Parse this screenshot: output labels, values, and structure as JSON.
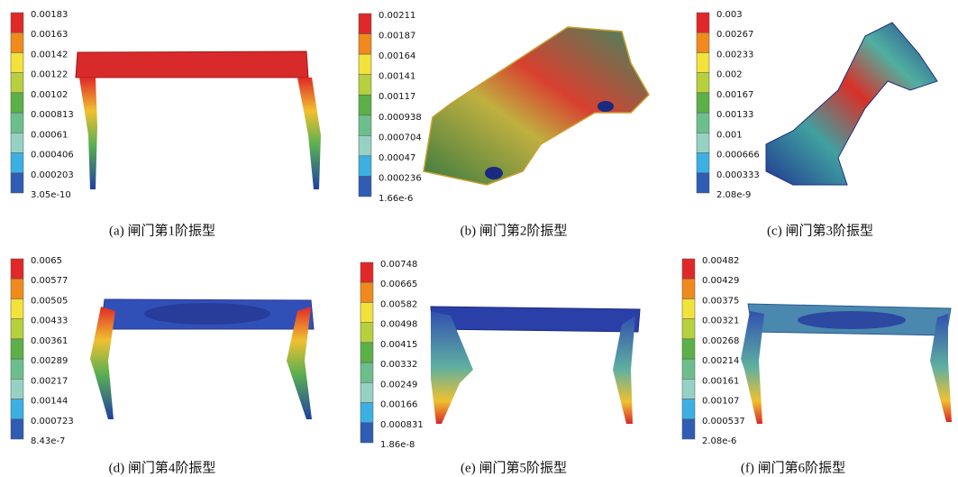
{
  "panels": [
    {
      "legend": [
        "0.00183",
        "0.00163",
        "0.00142",
        "0.00122",
        "0.00102",
        "0.000813",
        "0.00061",
        "0.000406",
        "0.000203",
        "3.05e-10"
      ],
      "caption": "(a) 闸门第1阶振型"
    },
    {
      "legend": [
        "0.00211",
        "0.00187",
        "0.00164",
        "0.00141",
        "0.00117",
        "0.000938",
        "0.000704",
        "0.00047",
        "0.000236",
        "1.66e-6"
      ],
      "caption": "(b) 闸门第2阶振型"
    },
    {
      "legend": [
        "0.003",
        "0.00267",
        "0.00233",
        "0.002",
        "0.00167",
        "0.00133",
        "0.001",
        "0.000666",
        "0.000333",
        "2.08e-9"
      ],
      "caption": "(c) 闸门第3阶振型"
    },
    {
      "legend": [
        "0.0065",
        "0.00577",
        "0.00505",
        "0.00433",
        "0.00361",
        "0.00289",
        "0.00217",
        "0.00144",
        "0.000723",
        "8.43e-7"
      ],
      "caption": "(d) 闸门第4阶振型"
    },
    {
      "legend": [
        "0.00748",
        "0.00665",
        "0.00582",
        "0.00498",
        "0.00415",
        "0.00332",
        "0.00249",
        "0.00166",
        "0.000831",
        "1.86e-8"
      ],
      "caption": "(e) 闸门第5阶振型"
    },
    {
      "legend": [
        "0.00482",
        "0.00429",
        "0.00375",
        "0.00321",
        "0.00268",
        "0.00214",
        "0.00161",
        "0.00107",
        "0.000537",
        "2.08e-6"
      ],
      "caption": "(f) 闸门第6阶振型"
    }
  ]
}
